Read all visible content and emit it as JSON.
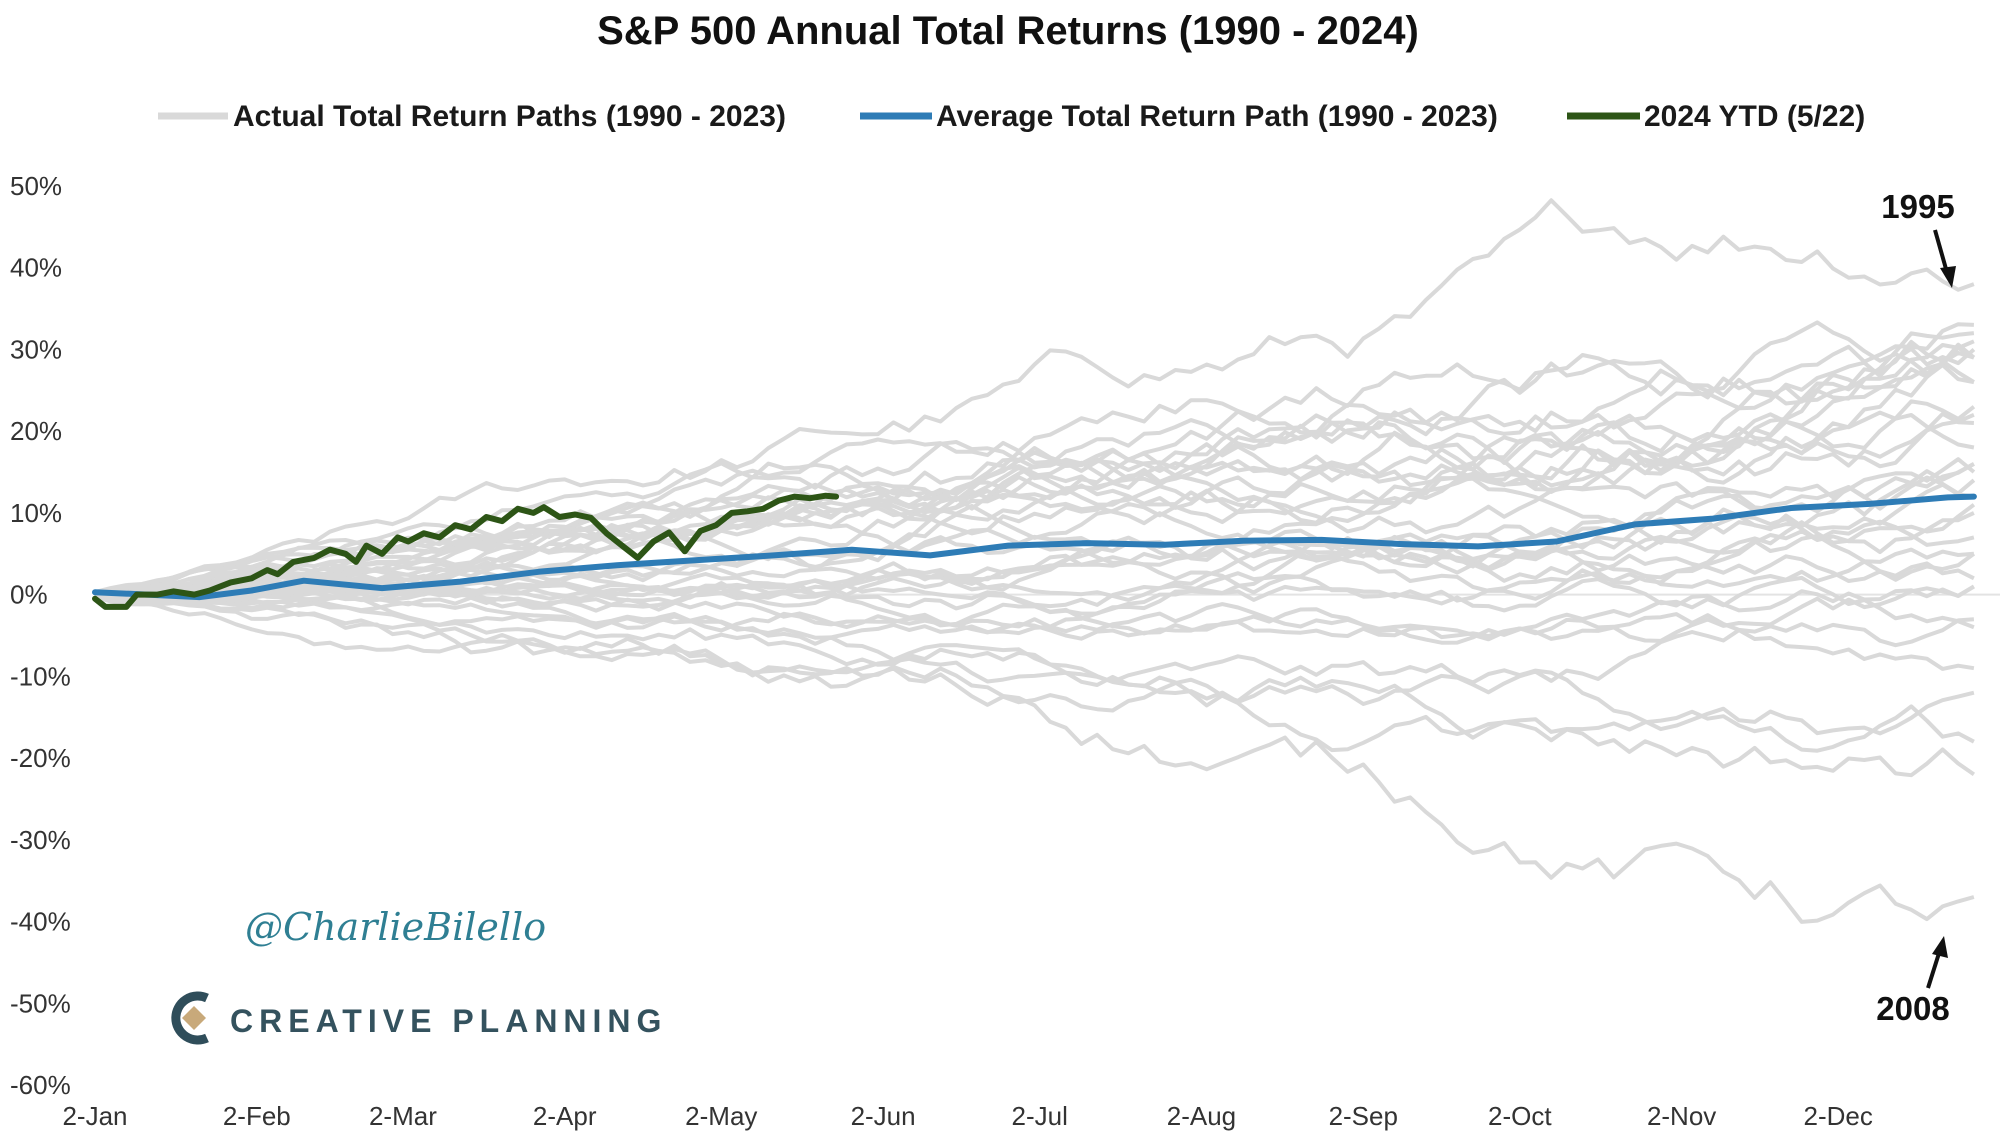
{
  "chart_data": {
    "type": "line",
    "title": "S&P 500 Annual Total Returns (1990 - 2024)",
    "legend": [
      "Actual Total Return Paths (1990 - 2023)",
      "Average Total Return Path (1990 - 2023)",
      "2024 YTD (5/22)"
    ],
    "legend_position": "top",
    "grid": false,
    "ylim": [
      -60,
      50
    ],
    "yticks": [
      "50%",
      "40%",
      "30%",
      "20%",
      "10%",
      "0%",
      "-10%",
      "-20%",
      "-30%",
      "-40%",
      "-50%",
      "-60%"
    ],
    "xticks": [
      "2-Jan",
      "2-Feb",
      "2-Mar",
      "2-Apr",
      "2-May",
      "2-Jun",
      "2-Jul",
      "2-Aug",
      "2-Sep",
      "2-Oct",
      "2-Nov",
      "2-Dec"
    ],
    "year_end_returns": [
      -3,
      30,
      7,
      10,
      1,
      38,
      23,
      33,
      29,
      21,
      -9,
      -12,
      -22,
      29,
      11,
      5,
      16,
      5,
      -37,
      26,
      15,
      2,
      16,
      32,
      14,
      1,
      12,
      22,
      -4,
      31,
      18,
      29,
      -18,
      26
    ],
    "series": [
      {
        "name": "Average Total Return Path (1990 - 2023)",
        "color": "#2e7cb6",
        "x": [
          0,
          10,
          20,
          30,
          40,
          55,
          70,
          85,
          100,
          115,
          130,
          145,
          160,
          175,
          190,
          205,
          220,
          235,
          250,
          265,
          280,
          295,
          310,
          325,
          340,
          355,
          360
        ],
        "y": [
          0.3,
          0,
          -0.3,
          0.5,
          1.7,
          0.8,
          1.6,
          2.8,
          3.6,
          4.2,
          4.8,
          5.5,
          4.8,
          6.0,
          6.3,
          6.1,
          6.6,
          6.7,
          6.2,
          5.9,
          6.5,
          8.6,
          9.3,
          10.6,
          11.1,
          11.9,
          12.0
        ]
      },
      {
        "name": "2024 YTD (5/22)",
        "color": "#2d5516",
        "x": [
          0,
          2,
          6,
          8,
          12,
          15,
          19,
          22,
          26,
          30,
          33,
          35,
          38,
          42,
          45,
          48,
          50,
          52,
          55,
          58,
          60,
          63,
          66,
          69,
          72,
          75,
          78,
          81,
          84,
          86,
          89,
          92,
          95,
          98,
          101,
          104,
          107,
          110,
          113,
          116,
          119,
          122,
          125,
          128,
          131,
          134,
          137,
          140,
          142
        ],
        "y": [
          -0.5,
          -1.5,
          -1.5,
          0,
          0,
          0.4,
          0,
          0.5,
          1.5,
          2,
          3,
          2.5,
          4,
          4.5,
          5.5,
          5,
          4,
          6,
          5,
          7,
          6.5,
          7.5,
          7,
          8.5,
          8,
          9.5,
          9,
          10.5,
          10,
          10.7,
          9.5,
          9.8,
          9.4,
          7.5,
          6,
          4.5,
          6.5,
          7.6,
          5.3,
          7.8,
          8.5,
          10,
          10.2,
          10.5,
          11.5,
          12,
          11.8,
          12.1,
          12
        ]
      }
    ]
  },
  "annotations": {
    "top": "1995",
    "bottom": "2008"
  },
  "credits": {
    "handle": "@CharlieBilello",
    "brand": "CREATIVE PLANNING"
  },
  "colors": {
    "paths": "#d9d9d9",
    "average": "#2e7cb6",
    "ytd": "#2d5516",
    "text": "#111111"
  }
}
